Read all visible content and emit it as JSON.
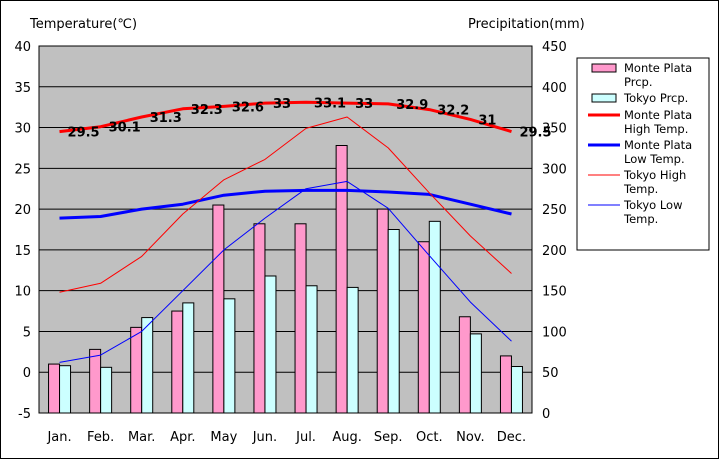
{
  "chart_data": {
    "type": "bar+line",
    "left_axis_title": "Temperature(℃)",
    "right_axis_title": "Precipitation(mm)",
    "months": [
      "Jan.",
      "Feb.",
      "Mar.",
      "Apr.",
      "May",
      "Jun.",
      "Jul.",
      "Aug.",
      "Sep.",
      "Oct.",
      "Nov.",
      "Dec."
    ],
    "temp_ylim": [
      -5,
      40
    ],
    "temp_ticks": [
      "-5",
      "0",
      "5",
      "10",
      "15",
      "20",
      "25",
      "30",
      "35",
      "40"
    ],
    "precip_ylim": [
      0,
      450
    ],
    "precip_ticks": [
      "0",
      "50",
      "100",
      "150",
      "200",
      "250",
      "300",
      "350",
      "400",
      "450"
    ],
    "bar_series": [
      {
        "name": "Monte Plata Prcp.",
        "color": "#ff99cc",
        "values": [
          60,
          78,
          105,
          125,
          255,
          232,
          232,
          328,
          250,
          210,
          118,
          70
        ]
      },
      {
        "name": "Tokyo Prcp.",
        "color": "#ccffff",
        "values": [
          58,
          56,
          117,
          135,
          140,
          168,
          156,
          154,
          225,
          235,
          97,
          57
        ]
      }
    ],
    "line_series": [
      {
        "name": "Monte Plata High Temp.",
        "color": "#ff0000",
        "width": "thick",
        "values": [
          29.5,
          30.1,
          31.3,
          32.3,
          32.6,
          33.0,
          33.1,
          33.0,
          32.9,
          32.2,
          31.0,
          29.5
        ],
        "labels": [
          "29.5",
          "30.1",
          "31.3",
          "32.3",
          "32.6",
          "33",
          "33.1",
          "33",
          "32.9",
          "32.2",
          "31",
          "29.5"
        ]
      },
      {
        "name": "Monte Plata Low Temp.",
        "color": "#0000ff",
        "width": "thick",
        "values": [
          18.9,
          19.1,
          20.0,
          20.6,
          21.7,
          22.2,
          22.3,
          22.3,
          22.1,
          21.8,
          20.6,
          19.4
        ]
      },
      {
        "name": "Tokyo High Temp.",
        "color": "#ff0000",
        "width": "thin",
        "values": [
          9.8,
          10.9,
          14.2,
          19.4,
          23.6,
          26.1,
          29.9,
          31.3,
          27.5,
          22.0,
          16.7,
          12.1
        ]
      },
      {
        "name": "Tokyo Low Temp.",
        "color": "#0000ff",
        "width": "thin",
        "values": [
          1.2,
          2.1,
          5.0,
          10.0,
          15.0,
          18.9,
          22.5,
          23.4,
          20.1,
          14.3,
          8.6,
          3.8
        ]
      }
    ],
    "legend": [
      {
        "key": "mp-prcp",
        "kind": "bar",
        "color": "#ff99cc",
        "lines": [
          "Monte Plata",
          "Prcp."
        ]
      },
      {
        "key": "tk-prcp",
        "kind": "bar",
        "color": "#ccffff",
        "lines": [
          "Tokyo Prcp."
        ]
      },
      {
        "key": "mp-high",
        "kind": "thick-line",
        "color": "#ff0000",
        "lines": [
          "Monte Plata",
          "High Temp."
        ]
      },
      {
        "key": "mp-low",
        "kind": "thick-line",
        "color": "#0000ff",
        "lines": [
          "Monte Plata",
          "Low Temp."
        ]
      },
      {
        "key": "tk-high",
        "kind": "thin-line",
        "color": "#ff0000",
        "lines": [
          "Tokyo High",
          "Temp."
        ]
      },
      {
        "key": "tk-low",
        "kind": "thin-line",
        "color": "#0000ff",
        "lines": [
          "Tokyo Low",
          "Temp."
        ]
      }
    ],
    "plot_background": "#c0c0c0",
    "legend_placement": "right"
  }
}
